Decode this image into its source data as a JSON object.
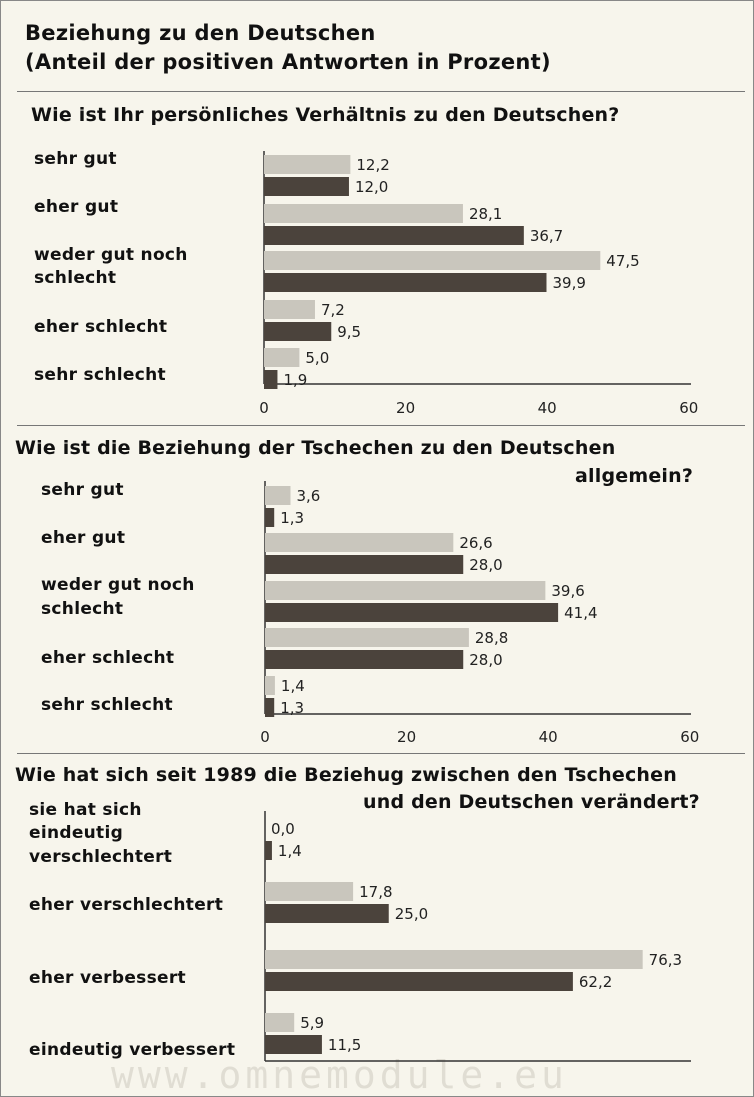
{
  "title_line1": "Beziehung zu den Deutschen",
  "title_line2": "(Anteil der positiven Antworten in Prozent)",
  "colors": {
    "light_bar": "#c9c6bd",
    "dark_bar": "#4b433c",
    "axis": "#333333"
  },
  "watermark": "www.omnemodule.eu",
  "chart_data": [
    {
      "type": "bar",
      "title": "Wie ist Ihr persönliches Verhältnis zu den Deutschen?",
      "categories": [
        "sehr gut",
        "eher gut",
        "weder gut noch schlecht",
        "eher schlecht",
        "sehr schlecht"
      ],
      "series": [
        {
          "values": [
            12.2,
            28.1,
            47.5,
            7.2,
            5.0
          ],
          "labels": [
            "12,2",
            "28,1",
            "47,5",
            "7,2",
            "5,0"
          ]
        },
        {
          "values": [
            12.0,
            36.7,
            39.9,
            9.5,
            1.9
          ],
          "labels": [
            "12,0",
            "36,7",
            "39,9",
            "9,5",
            "1,9"
          ]
        }
      ],
      "xlim": [
        0,
        60
      ],
      "ticks": [
        "0",
        "20",
        "40",
        "60"
      ]
    },
    {
      "type": "bar",
      "title": "Wie ist die Beziehung der Tschechen zu den Deutschen allgemein?",
      "categories": [
        "sehr gut",
        "eher gut",
        "weder gut noch schlecht",
        "eher schlecht",
        "sehr schlecht"
      ],
      "series": [
        {
          "values": [
            3.6,
            26.6,
            39.6,
            28.8,
            1.4
          ],
          "labels": [
            "3,6",
            "26,6",
            "39,6",
            "28,8",
            "1,4"
          ]
        },
        {
          "values": [
            1.3,
            28.0,
            41.4,
            28.0,
            1.3
          ],
          "labels": [
            "1,3",
            "28,0",
            "41,4",
            "28,0",
            "1,3"
          ]
        }
      ],
      "xlim": [
        0,
        60
      ],
      "ticks": [
        "0",
        "20",
        "40",
        "60"
      ]
    },
    {
      "type": "bar",
      "title": "Wie hat sich seit 1989 die Beziehug zwischen den Tschechen und den Deutschen verändert?",
      "categories": [
        "sie hat sich eindeutig verschlechtert",
        "eher verschlechtert",
        "eher verbessert",
        "eindeutig verbessert"
      ],
      "series": [
        {
          "values": [
            0.0,
            17.8,
            76.3,
            5.9
          ],
          "labels": [
            "0,0",
            "17,8",
            "76,3",
            "5,9"
          ]
        },
        {
          "values": [
            1.4,
            25.0,
            62.2,
            11.5
          ],
          "labels": [
            "1,4",
            "25,0",
            "62,2",
            "11,5"
          ]
        }
      ],
      "xlim": [
        0,
        80
      ]
    }
  ],
  "text": {
    "q1": "Wie ist Ihr persönliches Verhältnis zu den Deutschen?",
    "q2_line1": "Wie ist die Beziehung der Tschechen zu den Deutschen",
    "q2_line2": "allgemein?",
    "q3_line1": "Wie hat sich seit 1989 die Beziehug zwischen den Tschechen",
    "q3_line2": "und den Deutschen verändert?",
    "c1": [
      "sehr gut",
      "eher gut",
      "weder gut noch",
      "schlecht",
      "eher schlecht",
      "sehr schlecht"
    ],
    "c2": [
      "sehr gut",
      "eher gut",
      "weder gut noch",
      "schlecht",
      "eher schlecht",
      "sehr schlecht"
    ],
    "c3": [
      "sie hat sich",
      "eindeutig",
      "verschlechtert",
      "eher verschlechtert",
      "eher verbessert",
      "eindeutig verbessert"
    ]
  }
}
